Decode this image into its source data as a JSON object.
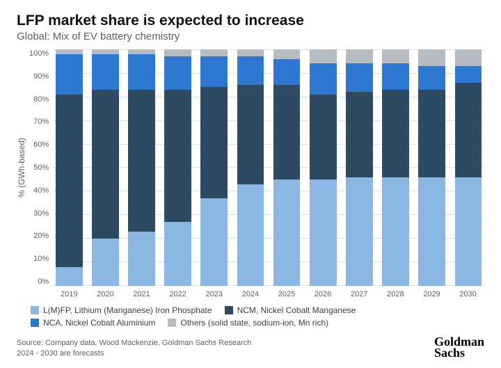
{
  "title": "LFP market share is expected to increase",
  "subtitle": "Global: Mix of EV battery chemistry",
  "y_axis_label": "% (GWh-based)",
  "chart": {
    "type": "stacked-bar",
    "ylim": [
      0,
      100
    ],
    "ytick_step": 10,
    "background_color": "#ffffff",
    "grid_color": "#dcdfe3",
    "bar_width_ratio": 0.82,
    "categories": [
      "2019",
      "2020",
      "2021",
      "2022",
      "2023",
      "2024",
      "2025",
      "2026",
      "2027",
      "2028",
      "2029",
      "2030"
    ],
    "series": [
      {
        "name": "L(M)FP, Lithium (Manganese) Iron Phosphate",
        "color": "#8db7e3",
        "values": [
          8,
          20,
          23,
          27,
          37,
          43,
          45,
          45,
          46,
          46,
          46,
          46
        ]
      },
      {
        "name": "NCM, Nickel Cobalt Manganese",
        "color": "#2e4a63",
        "values": [
          73,
          63,
          60,
          56,
          47,
          42,
          40,
          36,
          36,
          37,
          37,
          40
        ]
      },
      {
        "name": "NCA, Nickel Cobalt Aluminium",
        "color": "#2f78d1",
        "values": [
          17,
          15,
          15,
          14,
          13,
          12,
          11,
          13,
          12,
          11,
          10,
          7
        ]
      },
      {
        "name": "Others (solid state, sodium-ion, Mn rich)",
        "color": "#b6bcc2",
        "values": [
          2,
          2,
          2,
          3,
          3,
          3,
          4,
          6,
          6,
          6,
          7,
          7
        ]
      }
    ],
    "x_label_fontsize": 11,
    "y_label_fontsize": 11,
    "tick_color": "#5a5f66"
  },
  "legend_items": [
    "L(M)FP, Lithium (Manganese) Iron Phosphate",
    "NCM, Nickel Cobalt Manganese",
    "NCA, Nickel Cobalt Aluminium",
    "Others (solid state, sodium-ion, Mn rich)"
  ],
  "source_line1": "Source: Company data, Wood Mackenzie, Goldman Sachs Research",
  "source_line2": "2024 - 2030 are forecasts",
  "logo_line1": "Goldman",
  "logo_line2": "Sachs"
}
